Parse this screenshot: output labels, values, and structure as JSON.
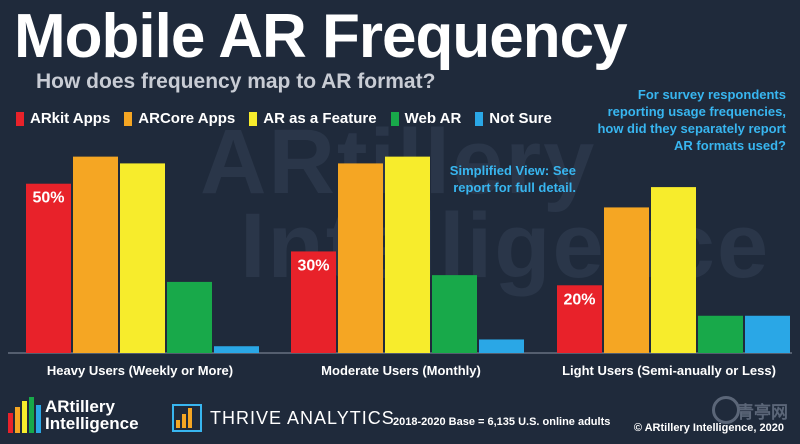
{
  "title": "Mobile AR Frequency",
  "subtitle": "How does frequency map to AR format?",
  "watermark_lines": [
    "ARtillery",
    "Intelligence"
  ],
  "note_top": "For survey respondents reporting usage frequencies, how did they separately report AR formats used?",
  "note_mid": "Simplified View: See report for full detail.",
  "footer": "2018-2020 Base = 6,135 U.S. online adults",
  "copyright": "© ARtillery Intelligence, 2020",
  "logos": {
    "artillery_line1": "ARtillery",
    "artillery_line2": "Intelligence",
    "thrive": "THRIVE ANALYTICS",
    "corner": "青亭网"
  },
  "chart_data": {
    "type": "bar",
    "categories": [
      "Heavy Users (Weekly or More)",
      "Moderate Users (Monthly)",
      "Light Users (Semi-anually or Less)"
    ],
    "series": [
      {
        "name": "ARkit Apps",
        "color": "#e8222a",
        "values": [
          50,
          30,
          20
        ],
        "labels": [
          "50%",
          "30%",
          "20%"
        ]
      },
      {
        "name": "ARCore Apps",
        "color": "#f5a623",
        "values": [
          58,
          56,
          43
        ],
        "labels": [
          "",
          "",
          ""
        ]
      },
      {
        "name": "AR as a Feature",
        "color": "#f7ec2c",
        "values": [
          56,
          58,
          49
        ],
        "labels": [
          "",
          "",
          ""
        ]
      },
      {
        "name": "Web AR",
        "color": "#18a94a",
        "values": [
          21,
          23,
          11
        ],
        "labels": [
          "",
          "",
          ""
        ]
      },
      {
        "name": "Not Sure",
        "color": "#2aa7e6",
        "values": [
          2,
          4,
          11
        ],
        "labels": [
          "",
          "",
          ""
        ]
      }
    ],
    "ylim": [
      0,
      70
    ],
    "grid": false,
    "legend": "top-left"
  }
}
